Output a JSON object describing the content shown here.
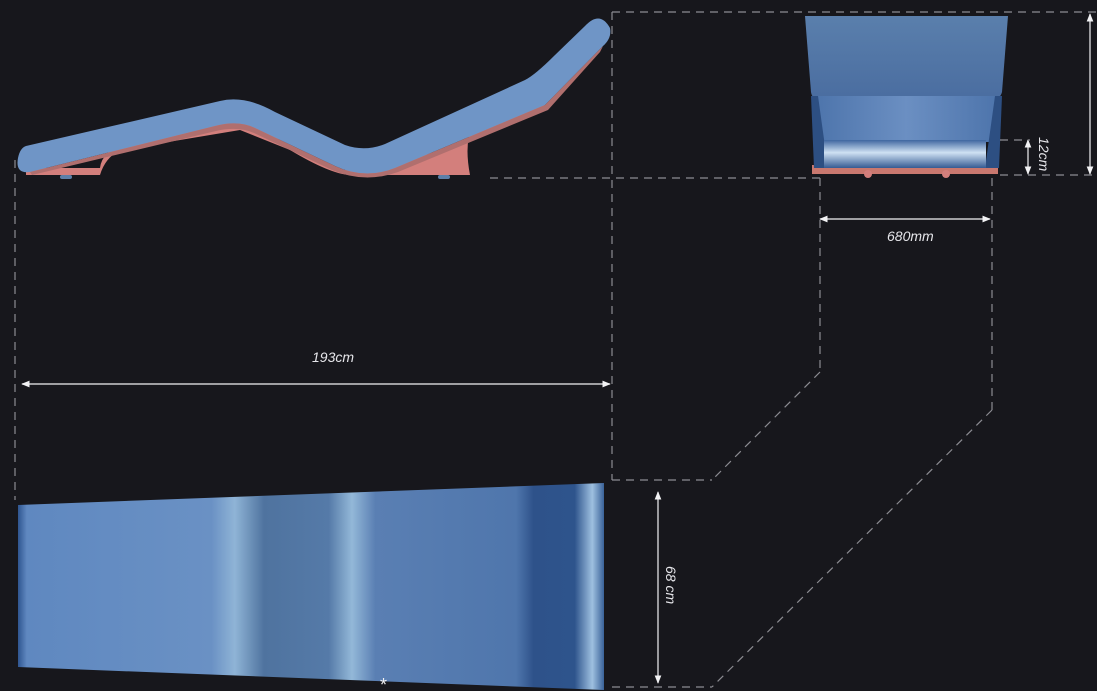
{
  "dimensions": {
    "length": "193cm",
    "width": "680mm",
    "top_width": "68 cm",
    "base_height": "12cm"
  },
  "marker": "*",
  "colors": {
    "background": "#17171c",
    "cushion": "#6f95c6",
    "base": "#d37f7c",
    "guide": "#8c8c92",
    "dimension": "#f2f2f4"
  }
}
